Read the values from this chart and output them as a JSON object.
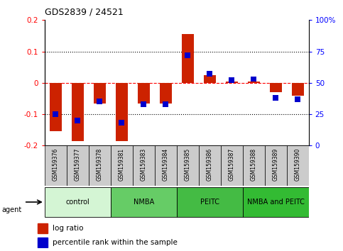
{
  "title": "GDS2839 / 24521",
  "samples": [
    "GSM159376",
    "GSM159377",
    "GSM159378",
    "GSM159381",
    "GSM159383",
    "GSM159384",
    "GSM159385",
    "GSM159386",
    "GSM159387",
    "GSM159388",
    "GSM159389",
    "GSM159390"
  ],
  "log_ratio": [
    -0.155,
    -0.185,
    -0.065,
    -0.185,
    -0.065,
    -0.065,
    0.155,
    0.025,
    0.003,
    0.005,
    -0.03,
    -0.04
  ],
  "percentile_rank": [
    25,
    20,
    35,
    18,
    33,
    33,
    72,
    57,
    52,
    53,
    38,
    37
  ],
  "groups": [
    {
      "label": "control",
      "start": 0,
      "end": 3,
      "color": "#d4f5d4"
    },
    {
      "label": "NMBA",
      "start": 3,
      "end": 6,
      "color": "#66cc66"
    },
    {
      "label": "PEITC",
      "start": 6,
      "end": 9,
      "color": "#44bb44"
    },
    {
      "label": "NMBA and PEITC",
      "start": 9,
      "end": 12,
      "color": "#33bb33"
    }
  ],
  "ylim_left": [
    -0.2,
    0.2
  ],
  "ylim_right": [
    0,
    100
  ],
  "red_color": "#cc2200",
  "blue_color": "#0000cc",
  "bg_color": "#ffffff",
  "sample_bg": "#cccccc",
  "red_bar_width": 0.55,
  "blue_bar_width": 0.25
}
